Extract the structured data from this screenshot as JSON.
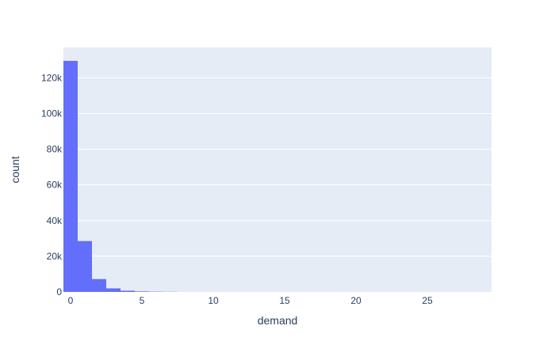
{
  "chart_data": {
    "type": "bar",
    "subtype": "histogram",
    "xlabel": "demand",
    "ylabel": "count",
    "xlim": [
      -0.5,
      29.5
    ],
    "ylim": [
      0,
      137000
    ],
    "x_ticks": [
      {
        "value": 0,
        "label": "0"
      },
      {
        "value": 5,
        "label": "5"
      },
      {
        "value": 10,
        "label": "10"
      },
      {
        "value": 15,
        "label": "15"
      },
      {
        "value": 20,
        "label": "20"
      },
      {
        "value": 25,
        "label": "25"
      }
    ],
    "y_ticks": [
      {
        "value": 0,
        "label": "0"
      },
      {
        "value": 20000,
        "label": "20k"
      },
      {
        "value": 40000,
        "label": "40k"
      },
      {
        "value": 60000,
        "label": "60k"
      },
      {
        "value": 80000,
        "label": "80k"
      },
      {
        "value": 100000,
        "label": "100k"
      },
      {
        "value": 120000,
        "label": "120k"
      }
    ],
    "bins": [
      {
        "start": -0.5,
        "end": 0.5,
        "count": 129500
      },
      {
        "start": 0.5,
        "end": 1.5,
        "count": 28500
      },
      {
        "start": 1.5,
        "end": 2.5,
        "count": 7200
      },
      {
        "start": 2.5,
        "end": 3.5,
        "count": 2000
      },
      {
        "start": 3.5,
        "end": 4.5,
        "count": 700
      },
      {
        "start": 4.5,
        "end": 5.5,
        "count": 300
      },
      {
        "start": 5.5,
        "end": 6.5,
        "count": 150
      },
      {
        "start": 6.5,
        "end": 7.5,
        "count": 80
      }
    ],
    "grid": true,
    "legend": "none",
    "colors": {
      "bar": "#636efa",
      "plot_background": "#e5ecf6",
      "grid": "#ffffff",
      "text": "#2a3f5f"
    }
  }
}
